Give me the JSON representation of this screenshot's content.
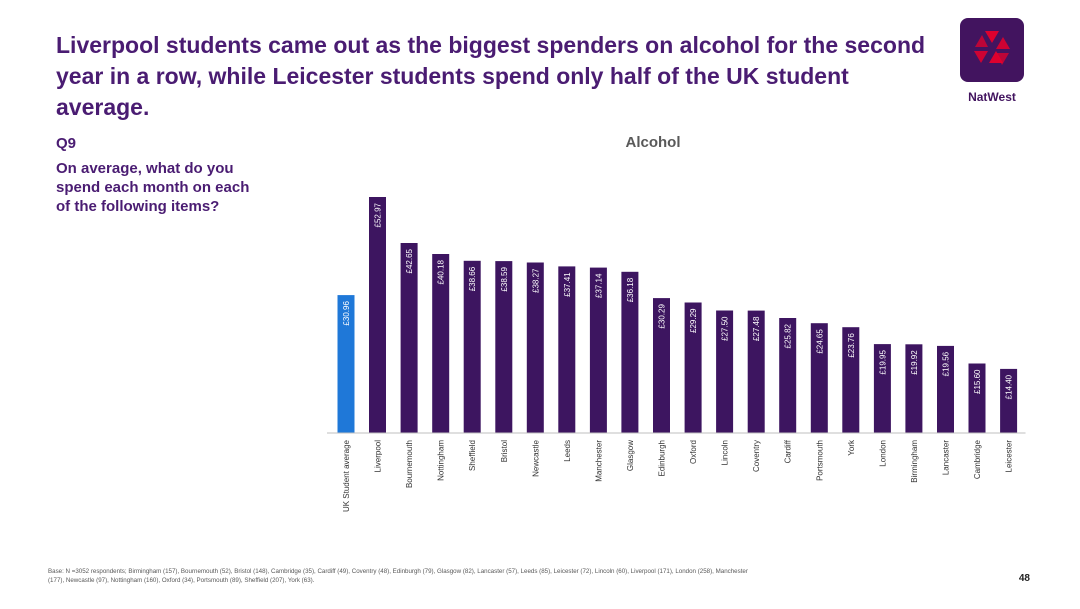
{
  "headline": "Liverpool students came out as the biggest spenders on alcohol for the second year in a row, while Leicester students spend only half of the UK student average.",
  "brand": {
    "name": "NatWest",
    "icon": "natwest-logo-icon",
    "color": "#42145f",
    "accent": "#e5002b"
  },
  "question": {
    "number": "Q9",
    "text": "On average, what do you spend each month on each of the following items?"
  },
  "chart_data": {
    "type": "bar",
    "title": "Alcohol",
    "xlabel": "",
    "ylabel": "",
    "ylim": [
      0,
      55
    ],
    "grid": false,
    "legend": "none",
    "orientation": "vertical",
    "categories": [
      "UK Student average",
      "Liverpool",
      "Bournemouth",
      "Nottingham",
      "Sheffield",
      "Bristol",
      "Newcastle",
      "Leeds",
      "Manchester",
      "Glasgow",
      "Edinburgh",
      "Oxford",
      "Lincoln",
      "Coventry",
      "Cardiff",
      "Portsmouth",
      "York",
      "London",
      "Birmingham",
      "Lancaster",
      "Cambridge",
      "Leicester"
    ],
    "values": [
      30.96,
      52.97,
      42.65,
      40.18,
      38.66,
      38.59,
      38.27,
      37.41,
      37.14,
      36.18,
      30.29,
      29.29,
      27.5,
      27.48,
      25.82,
      24.65,
      23.76,
      19.95,
      19.92,
      19.56,
      15.6,
      14.4
    ],
    "labels": [
      "£30.96",
      "£52.97",
      "£42.65",
      "£40.18",
      "£38.66",
      "£38.59",
      "£38.27",
      "£37.41",
      "£37.14",
      "£36.18",
      "£30.29",
      "£29.29",
      "£27.50",
      "£27.48",
      "£25.82",
      "£24.65",
      "£23.76",
      "£19.95",
      "£19.92",
      "£19.56",
      "£15.60",
      "£14.40"
    ],
    "colors": {
      "highlight": "#1f78d8",
      "bar": "#3d1560",
      "axis": "#bfbfbf",
      "label": "#ffffff",
      "tick": "#333333"
    }
  },
  "footnote": "Base: N =3052 respondents; Birmingham (157), Bournemouth (52), Bristol (148), Cambridge (35), Cardiff (49), Coventry (48), Edinburgh (79), Glasgow (82), Lancaster (57), Leeds (85), Leicester (72), Lincoln (60), Liverpool (171), London (258), Manchester (177), Newcastle (97), Nottingham (160), Oxford (34), Portsmouth (89), Sheffield (207), York (63).",
  "page_number": "48"
}
